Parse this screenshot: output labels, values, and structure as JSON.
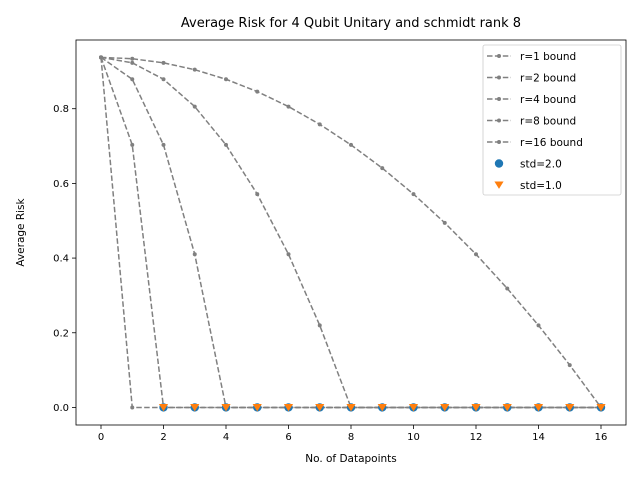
{
  "chart_data": {
    "type": "line",
    "title": "Average Risk for 4 Qubit Unitary and schmidt rank 8",
    "xlabel": "No. of Datapoints",
    "ylabel": "Average Risk",
    "xlim": [
      -0.8,
      16.8
    ],
    "ylim": [
      -0.047,
      0.984
    ],
    "xticks": [
      0,
      2,
      4,
      6,
      8,
      10,
      12,
      14,
      16
    ],
    "yticks": [
      0.0,
      0.2,
      0.4,
      0.6,
      0.8
    ],
    "grid": false,
    "legend_position": "top-right",
    "series": [
      {
        "name": "r=1 bound",
        "kind": "dashed-line",
        "color": "#808080",
        "x": [
          0,
          1,
          2,
          3,
          4,
          5,
          6,
          7,
          8,
          9,
          10,
          11,
          12,
          13,
          14,
          15,
          16
        ],
        "y": [
          0.9375,
          0.0,
          0.0,
          0.0,
          0.0,
          0.0,
          0.0,
          0.0,
          0.0,
          0.0,
          0.0,
          0.0,
          0.0,
          0.0,
          0.0,
          0.0,
          0.0
        ]
      },
      {
        "name": "r=2 bound",
        "kind": "dashed-line",
        "color": "#808080",
        "x": [
          0,
          1,
          2,
          3,
          4,
          5,
          6,
          7,
          8,
          9,
          10,
          11,
          12,
          13,
          14,
          15,
          16
        ],
        "y": [
          0.9375,
          0.7031,
          0.0,
          0.0,
          0.0,
          0.0,
          0.0,
          0.0,
          0.0,
          0.0,
          0.0,
          0.0,
          0.0,
          0.0,
          0.0,
          0.0,
          0.0
        ]
      },
      {
        "name": "r=4 bound",
        "kind": "dashed-line",
        "color": "#808080",
        "x": [
          0,
          1,
          2,
          3,
          4,
          5,
          6,
          7,
          8,
          9,
          10,
          11,
          12,
          13,
          14,
          15,
          16
        ],
        "y": [
          0.9375,
          0.8789,
          0.7031,
          0.4102,
          0.0,
          0.0,
          0.0,
          0.0,
          0.0,
          0.0,
          0.0,
          0.0,
          0.0,
          0.0,
          0.0,
          0.0,
          0.0
        ]
      },
      {
        "name": "r=8 bound",
        "kind": "dashed-line",
        "color": "#808080",
        "x": [
          0,
          1,
          2,
          3,
          4,
          5,
          6,
          7,
          8,
          9,
          10,
          11,
          12,
          13,
          14,
          15,
          16
        ],
        "y": [
          0.9375,
          0.9229,
          0.8789,
          0.8057,
          0.7031,
          0.5713,
          0.4102,
          0.2197,
          0.0,
          0.0,
          0.0,
          0.0,
          0.0,
          0.0,
          0.0,
          0.0,
          0.0
        ]
      },
      {
        "name": "r=16 bound",
        "kind": "dashed-line",
        "color": "#808080",
        "x": [
          0,
          1,
          2,
          3,
          4,
          5,
          6,
          7,
          8,
          9,
          10,
          11,
          12,
          13,
          14,
          15,
          16
        ],
        "y": [
          0.9375,
          0.9338,
          0.9229,
          0.9045,
          0.8789,
          0.8459,
          0.8057,
          0.7581,
          0.7031,
          0.6409,
          0.5713,
          0.4944,
          0.4102,
          0.3186,
          0.2197,
          0.1135,
          0.0
        ]
      },
      {
        "name": "std=2.0",
        "kind": "scatter-circle",
        "color": "#1f77b4",
        "x": [
          2,
          3,
          4,
          5,
          6,
          7,
          8,
          9,
          10,
          11,
          12,
          13,
          14,
          15,
          16
        ],
        "y": [
          0,
          0,
          0,
          0,
          0,
          0,
          0,
          0,
          0,
          0,
          0,
          0,
          0,
          0,
          0
        ]
      },
      {
        "name": "std=1.0",
        "kind": "scatter-triangle",
        "color": "#ff7f0e",
        "x": [
          2,
          3,
          4,
          5,
          6,
          7,
          8,
          9,
          10,
          11,
          12,
          13,
          14,
          15,
          16
        ],
        "y": [
          0,
          0,
          0,
          0,
          0,
          0,
          0,
          0,
          0,
          0,
          0,
          0,
          0,
          0,
          0
        ]
      }
    ]
  }
}
